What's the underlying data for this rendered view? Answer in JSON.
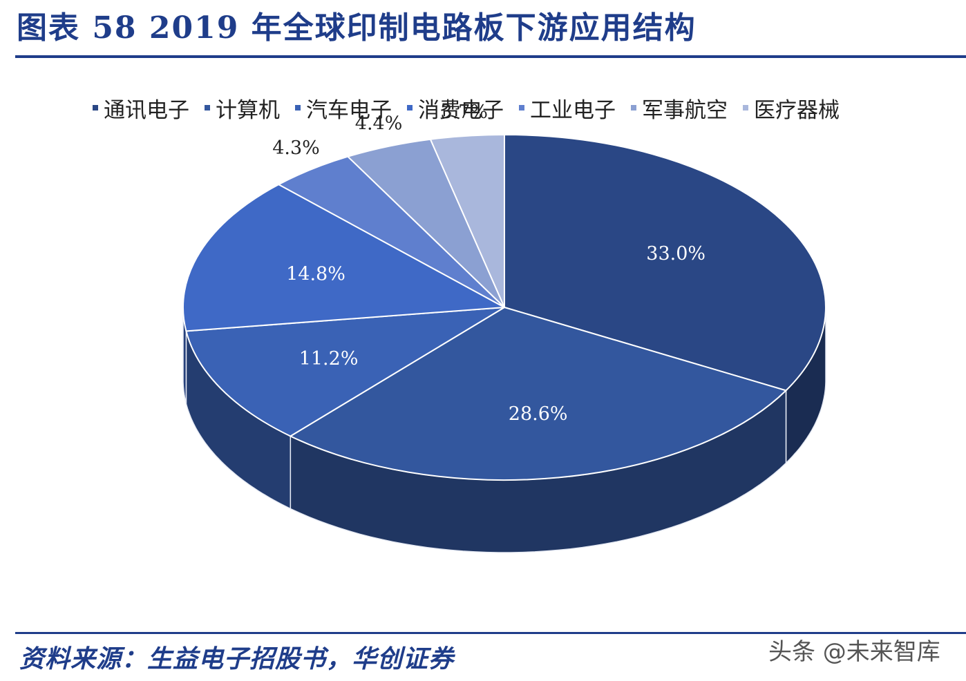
{
  "header": {
    "title": "图表 58   2019 年全球印制电路板下游应用结构"
  },
  "footer": {
    "source": "资料来源：生益电子招股书，华创证券",
    "watermark": "头条 @未来智库"
  },
  "chart_data": {
    "type": "pie",
    "categories": [
      "通讯电子",
      "计算机",
      "汽车电子",
      "消费电子",
      "工业电子",
      "军事航空",
      "医疗器械"
    ],
    "values": [
      33.0,
      28.6,
      11.2,
      14.8,
      4.3,
      4.4,
      3.7
    ],
    "value_labels": [
      "33.0%",
      "28.6%",
      "11.2%",
      "14.8%",
      "4.3%",
      "4.4%",
      "3.7%"
    ],
    "colors": [
      "#2a4785",
      "#33579e",
      "#3a62b5",
      "#3f69c6",
      "#5f7fce",
      "#8ba0d2",
      "#a9b7dc"
    ],
    "legend_position": "top",
    "start_angle": "12 o'clock",
    "direction": "clockwise",
    "style": "3d"
  }
}
